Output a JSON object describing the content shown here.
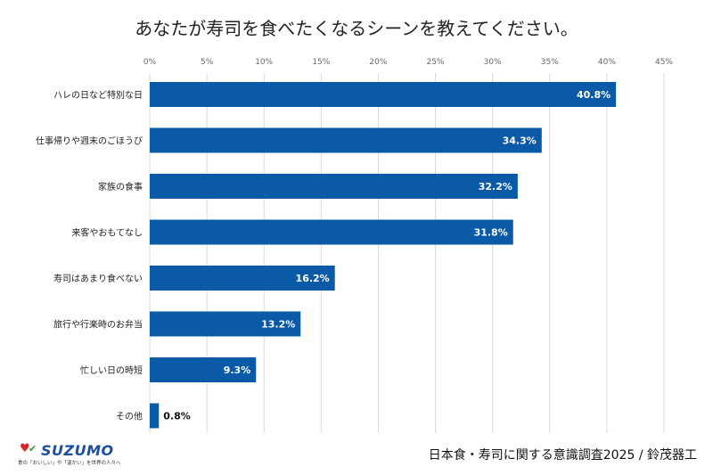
{
  "title": "あなたが寿司を食べたくなるシーンを教えてください。",
  "source": "日本食・寿司に関する意識調査2025 / 鈴茂器工",
  "logo": {
    "brand": "SUZUMO",
    "tagline": "食の「おいしい」や「温かい」を世界の人々へ"
  },
  "chart_data": {
    "type": "bar",
    "orientation": "horizontal",
    "title": "あなたが寿司を食べたくなるシーンを教えてください。",
    "categories": [
      "ハレの日など特別な日",
      "仕事帰りや週末のごほうび",
      "家族の食事",
      "来客やおもてなし",
      "寿司はあまり食べない",
      "旅行や行楽時のお弁当",
      "忙しい日の時短",
      "その他"
    ],
    "values": [
      40.8,
      34.3,
      32.2,
      31.8,
      16.2,
      13.2,
      9.3,
      0.8
    ],
    "data_labels": [
      "40.8%",
      "34.3%",
      "32.2%",
      "31.8%",
      "16.2%",
      "13.2%",
      "9.3%",
      "0.8%"
    ],
    "xlim": [
      0,
      45
    ],
    "x_ticks": [
      "0%",
      "5%",
      "10%",
      "15%",
      "20%",
      "25%",
      "30%",
      "35%",
      "40%",
      "45%"
    ],
    "x_axis_position": "top",
    "grid": true,
    "bar_color": "#0a5aa8"
  }
}
